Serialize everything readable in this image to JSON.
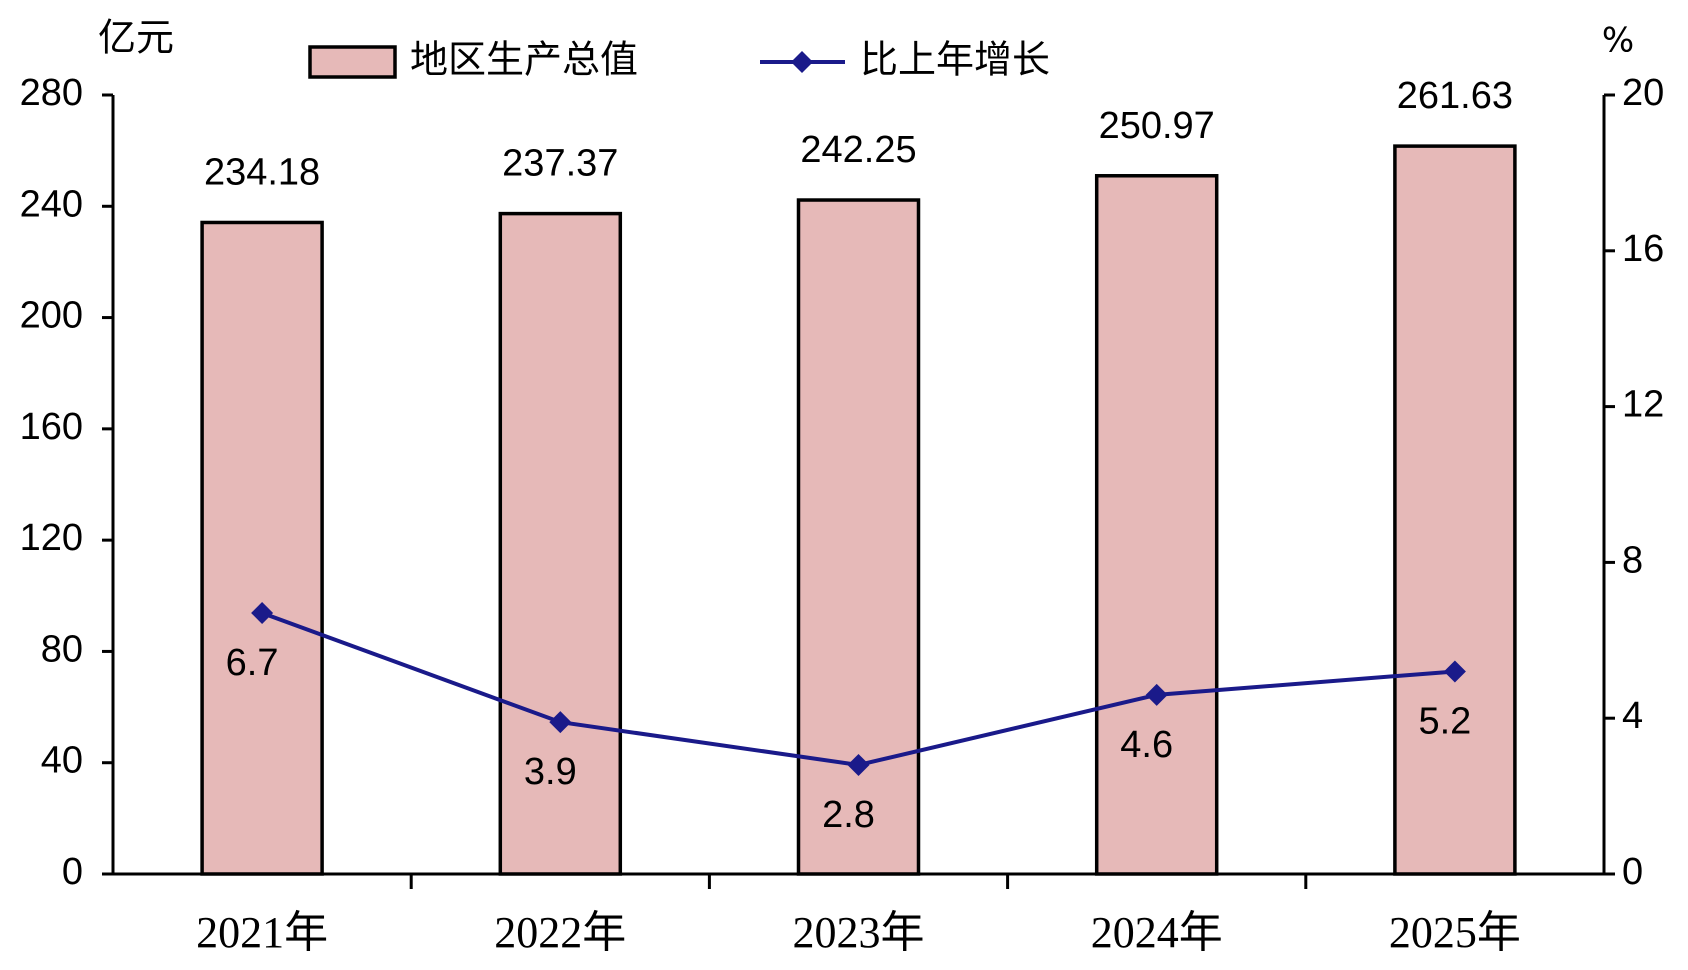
{
  "chart_data": {
    "type": "bar",
    "y_label": "亿元",
    "y2_label": "%",
    "categories": [
      "2021年",
      "2022年",
      "2023年",
      "2024年",
      "2025年"
    ],
    "series": [
      {
        "name": "地区生产总值",
        "type": "bar",
        "color": "#e6b9b8",
        "values": [
          234.18,
          237.37,
          242.25,
          250.97,
          261.63
        ]
      },
      {
        "name": "比上年增长",
        "type": "line",
        "axis": "y2",
        "color": "#1a1a8a",
        "values": [
          6.7,
          3.9,
          2.8,
          4.6,
          5.2
        ]
      }
    ],
    "ylim": [
      0,
      280
    ],
    "yticks": [
      0,
      40,
      80,
      120,
      160,
      200,
      240,
      280
    ],
    "y2lim": [
      0,
      20
    ],
    "y2ticks": [
      0,
      4,
      8,
      12,
      16,
      20
    ],
    "grid": false
  }
}
